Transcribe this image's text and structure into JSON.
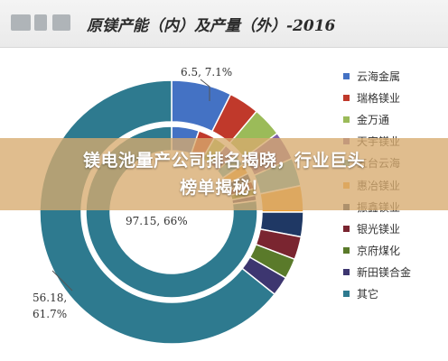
{
  "header": {
    "title": "原镁产能（内）及产量（外）-2016"
  },
  "banner": {
    "line1": "镁电池量产公司排名揭晓，行业巨头",
    "line2": "榜单揭秘！"
  },
  "chart_data": {
    "type": "pie",
    "title": "原镁产能（内）及产量（外）-2016",
    "categories": [
      "云海金属",
      "瑞格镁业",
      "金万通",
      "天宇镁业",
      "五台云海",
      "惠冶镁业",
      "振鑫镁业",
      "银光镁业",
      "京府煤化",
      "新田镁合金",
      "其它"
    ],
    "colors": [
      "#4472c4",
      "#c0392b",
      "#9bbb59",
      "#7f5fa8",
      "#45a8c4",
      "#f0a030",
      "#1f3864",
      "#7a2530",
      "#5a7a2a",
      "#3d3670",
      "#2e7a8f"
    ],
    "series": [
      {
        "name": "产能（内）",
        "values": [
          6.5,
          4.0,
          3.2,
          3.0,
          3.0,
          2.4,
          2.0,
          1.8,
          1.6,
          1.3,
          97.15
        ]
      },
      {
        "name": "产量（外）",
        "values": [
          7.1,
          3.6,
          3.5,
          3.4,
          3.3,
          3.1,
          2.9,
          2.7,
          2.4,
          2.3,
          61.7
        ]
      }
    ],
    "annotations": [
      {
        "text": "6.5, 7.1%",
        "series": "云海金属"
      },
      {
        "text": "97.15, 66%",
        "series": "其它"
      },
      {
        "text": "56.18,",
        "series": "其它"
      },
      {
        "text": "61.7%",
        "series": "其它"
      }
    ],
    "legend_position": "right"
  }
}
